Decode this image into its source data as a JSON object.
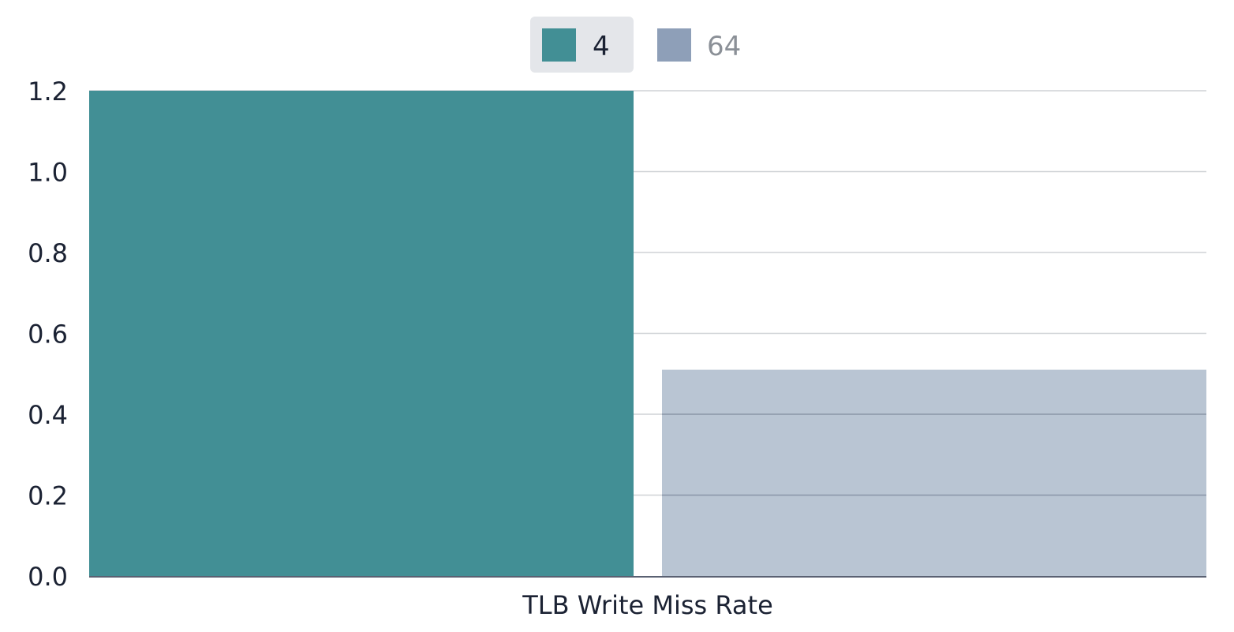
{
  "chart_data": {
    "type": "bar",
    "categories": [
      "TLB Write Miss Rate"
    ],
    "series": [
      {
        "name": "4",
        "values": [
          1.2
        ],
        "color": "#428f95",
        "legend_active": true
      },
      {
        "name": "64",
        "values": [
          0.51
        ],
        "color": "#b9c5d3",
        "legend_swatch_color": "#8e9fb8",
        "legend_active": false
      }
    ],
    "ylim": [
      0,
      1.2
    ],
    "yticks": [
      "0.0",
      "0.2",
      "0.4",
      "0.6",
      "0.8",
      "1.0",
      "1.2"
    ],
    "grid": true,
    "legend_position": "top-center",
    "title": "",
    "xlabel": "",
    "ylabel": ""
  }
}
